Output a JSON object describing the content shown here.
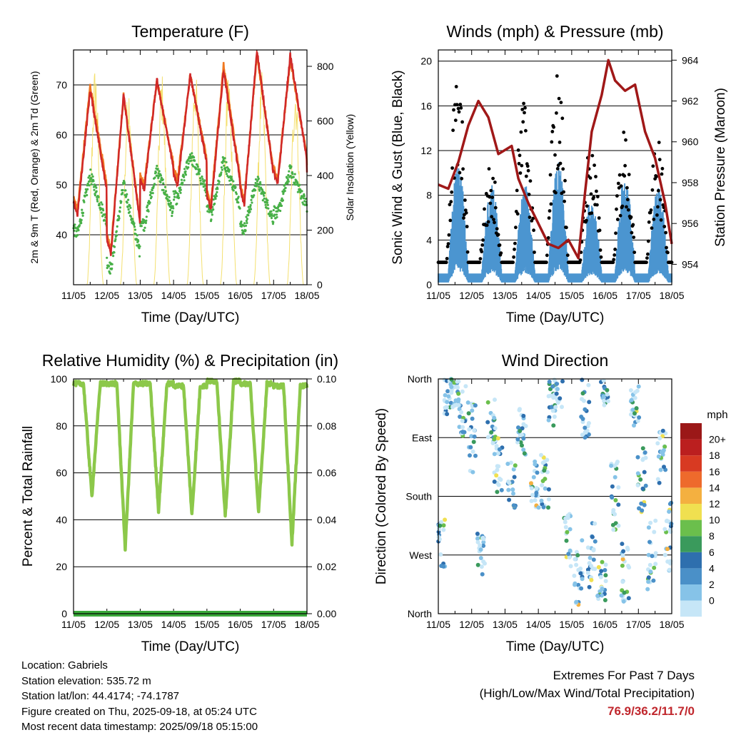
{
  "charts": [
    {
      "id": "temperature",
      "title": "Temperature (F)",
      "xlabel": "Time (Day/UTC)",
      "ylabel_left": "2m & 9m T (Red, Orange) & 2m Td (Green)",
      "ylabel_right": "Solar Insolation (Yellow)",
      "xticks": [
        "11/05",
        "12/05",
        "13/05",
        "14/05",
        "15/05",
        "16/05",
        "17/05",
        "18/05"
      ],
      "left_ticks": [
        "40",
        "50",
        "60",
        "70"
      ],
      "right_ticks": [
        "0",
        "200",
        "400",
        "600",
        "800"
      ]
    },
    {
      "id": "winds",
      "title": "Winds (mph) & Pressure (mb)",
      "xlabel": "Time (Day/UTC)",
      "ylabel_left": "Sonic Wind & Gust (Blue, Black)",
      "ylabel_right": "Station Pressure (Maroon)",
      "xticks": [
        "11/05",
        "12/05",
        "13/05",
        "14/05",
        "15/05",
        "16/05",
        "17/05",
        "18/05"
      ],
      "left_ticks": [
        "0",
        "4",
        "8",
        "12",
        "16",
        "20"
      ],
      "right_ticks": [
        "954",
        "956",
        "958",
        "960",
        "962",
        "964"
      ]
    },
    {
      "id": "humidity",
      "title": "Relative Humidity (%) & Precipitation (in)",
      "xlabel": "Time (Day/UTC)",
      "ylabel_left": "Percent & Total Rainfall",
      "xticks": [
        "11/05",
        "12/05",
        "13/05",
        "14/05",
        "15/05",
        "16/05",
        "17/05",
        "18/05"
      ],
      "left_ticks": [
        "0",
        "20",
        "40",
        "60",
        "80",
        "100"
      ],
      "right_ticks": [
        "0.00",
        "0.02",
        "0.04",
        "0.06",
        "0.08",
        "0.10"
      ]
    },
    {
      "id": "direction",
      "title": "Wind Direction",
      "xlabel": "Time (Day/UTC)",
      "ylabel_left": "Direction (Colored By Speed)",
      "xticks": [
        "11/05",
        "12/05",
        "13/05",
        "14/05",
        "15/05",
        "16/05",
        "17/05",
        "18/05"
      ],
      "left_ticks": [
        "North",
        "East",
        "South",
        "West",
        "North"
      ],
      "legend_title": "mph",
      "legend_labels": [
        "0",
        "2",
        "4",
        "6",
        "8",
        "10",
        "12",
        "14",
        "16",
        "18",
        "20+"
      ],
      "legend_colors": [
        "#c6e6f7",
        "#86c3e8",
        "#4a90c8",
        "#2e6fae",
        "#3a9a5c",
        "#6bbf4c",
        "#f0e050",
        "#f4b040",
        "#ee6a2c",
        "#d83a22",
        "#bb1f1f",
        "#9b1818"
      ]
    }
  ],
  "chart_data": [
    {
      "type": "line",
      "title": "Temperature (F)",
      "x": [
        "11/05",
        "12/05",
        "13/05",
        "14/05",
        "15/05",
        "16/05",
        "17/05",
        "18/05"
      ],
      "ylim": [
        30,
        77
      ],
      "y2lim": [
        0,
        860
      ],
      "series": [
        {
          "name": "2m T",
          "color": "#d02828",
          "daily_high": [
            69,
            68,
            71,
            72,
            73,
            77,
            76
          ],
          "daily_low": [
            44,
            36,
            49,
            50,
            45,
            46,
            50
          ]
        },
        {
          "name": "9m T",
          "color": "#f07820",
          "daily_high": [
            70,
            68,
            71,
            72,
            74,
            76,
            75
          ],
          "daily_low": [
            45,
            37,
            50,
            51,
            46,
            47,
            51
          ]
        },
        {
          "name": "2m Td",
          "color": "#48b048",
          "daily_high": [
            52,
            50,
            53,
            56,
            55,
            51,
            53
          ],
          "daily_low": [
            40,
            33,
            42,
            47,
            44,
            41,
            44
          ]
        },
        {
          "name": "Solar Insolation",
          "color": "#f4e070",
          "daily_peak": [
            810,
            750,
            780,
            800,
            790,
            780,
            760
          ]
        }
      ]
    },
    {
      "type": "scatter",
      "title": "Winds (mph) & Pressure (mb)",
      "x": [
        "11/05",
        "12/05",
        "13/05",
        "14/05",
        "15/05",
        "16/05",
        "17/05",
        "18/05"
      ],
      "ylim": [
        0,
        21
      ],
      "y2lim": [
        953,
        964.5
      ],
      "series": [
        {
          "name": "Gust",
          "color": "#000000",
          "daily_peak": [
            19,
            11,
            17.5,
            19.5,
            13,
            14,
            13
          ]
        },
        {
          "name": "Sonic Wind",
          "color": "#4b95d0",
          "daily_peak": [
            11,
            9,
            9,
            11,
            8,
            10,
            9
          ]
        },
        {
          "name": "Station Pressure",
          "color": "#a01818",
          "x_days": [
            0,
            0.3,
            0.6,
            0.9,
            1.2,
            1.5,
            1.8,
            2.0,
            2.2,
            2.4,
            2.7,
            3.0,
            3.3,
            3.6,
            3.9,
            4.2,
            4.4,
            4.6,
            4.9,
            5.1,
            5.3,
            5.6,
            5.9,
            6.2,
            6.5,
            6.8,
            7.0
          ],
          "values": [
            957.9,
            957.7,
            959.0,
            960.8,
            962.0,
            961.2,
            959.4,
            959.6,
            959.8,
            958.2,
            957.0,
            956.0,
            955.0,
            954.8,
            955.2,
            954.3,
            957.5,
            960.5,
            962.3,
            964.0,
            963.0,
            962.5,
            962.8,
            960.5,
            959.2,
            957.0,
            955.0
          ]
        }
      ]
    },
    {
      "type": "line",
      "title": "Relative Humidity (%) & Precipitation (in)",
      "x": [
        "11/05",
        "12/05",
        "13/05",
        "14/05",
        "15/05",
        "16/05",
        "17/05",
        "18/05"
      ],
      "ylim": [
        0,
        100
      ],
      "y2lim": [
        0,
        0.1
      ],
      "series": [
        {
          "name": "Relative Humidity",
          "color": "#8cc84a",
          "daily_high": [
            98,
            98,
            98,
            97,
            99,
            98,
            97
          ],
          "daily_low": [
            50,
            28,
            44,
            42,
            41,
            43,
            30
          ]
        },
        {
          "name": "Total Precipitation",
          "color": "#3aa83a",
          "values": [
            0,
            0,
            0,
            0,
            0,
            0,
            0,
            0
          ]
        }
      ]
    },
    {
      "type": "scatter",
      "title": "Wind Direction",
      "x": [
        "11/05",
        "12/05",
        "13/05",
        "14/05",
        "15/05",
        "16/05",
        "17/05",
        "18/05"
      ],
      "y_categories": [
        "North",
        "East",
        "South",
        "West",
        "North"
      ],
      "color_scale": {
        "label": "mph",
        "min": 0,
        "max": 20
      }
    }
  ],
  "station": {
    "location": "Location: Gabriels",
    "elevation": "Station elevation: 535.72 m",
    "latlon": "Station lat/lon: 44.4174; -74.1787",
    "created": "Figure created on Thu, 2025-09-18, at 05:24 UTC",
    "recent": "Most recent data timestamp: 2025/09/18 05:15:00"
  },
  "extremes": {
    "line1": "Extremes For Past 7 Days",
    "line2": "(High/Low/Max Wind/Total Precipitation)",
    "values": "76.9/36.2/11.7/0"
  }
}
